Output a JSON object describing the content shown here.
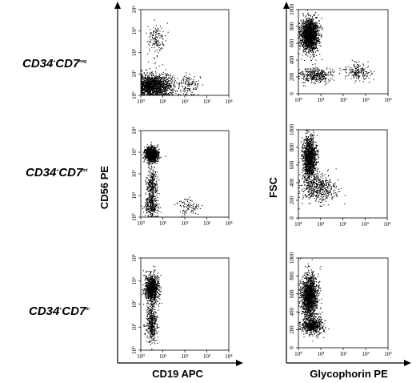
{
  "figure": {
    "row_labels": [
      {
        "base": "CD34",
        "sup1": "+",
        "mid": "CD7",
        "sup2": "neg"
      },
      {
        "base": "CD34",
        "sup1": "+",
        "mid": "CD7",
        "sup2": "int"
      },
      {
        "base": "CD34",
        "sup1": "+",
        "mid": "CD7",
        "sup2": "hi"
      }
    ],
    "left_column": {
      "ylabel": "CD56 PE",
      "xlabel": "CD19 APC"
    },
    "right_column": {
      "ylabel": "FSC",
      "xlabel": "Glycophorin PE"
    }
  },
  "chart_data": [
    {
      "type": "scatter",
      "panel": "CD34+CD7neg CD19 vs CD56",
      "x_scale": "log",
      "y_scale": "log",
      "xlim": [
        1,
        10000
      ],
      "ylim": [
        1,
        10000
      ],
      "x_ticks": [
        "10⁰",
        "10¹",
        "10²",
        "10³",
        "10⁴"
      ],
      "y_ticks": [
        "10⁰",
        "10¹",
        "10²",
        "10³",
        "10⁴"
      ],
      "clusters": [
        {
          "x_center": 2.5,
          "y_center": 3,
          "spread_x": 0.3,
          "spread_y": 0.25,
          "n": 1000
        },
        {
          "x_center": 10,
          "y_center": 3,
          "spread_x": 0.3,
          "spread_y": 0.25,
          "n": 450
        },
        {
          "x_center": 150,
          "y_center": 3,
          "spread_x": 0.25,
          "spread_y": 0.25,
          "n": 130
        },
        {
          "x_center": 5,
          "y_center": 400,
          "spread_x": 0.2,
          "spread_y": 0.4,
          "n": 140
        }
      ]
    },
    {
      "type": "scatter",
      "panel": "CD34+CD7neg Glycophorin vs FSC",
      "x_scale": "log",
      "y_scale": "linear",
      "xlim": [
        1,
        10000
      ],
      "ylim": [
        0,
        1000
      ],
      "x_ticks": [
        "10⁰",
        "10¹",
        "10²",
        "10³",
        "10⁴"
      ],
      "y_ticks": [
        "0",
        "200",
        "400",
        "600",
        "800",
        "1000"
      ],
      "clusters": [
        {
          "x_center": 3,
          "y_center": 700,
          "spread_x": 0.2,
          "spread_y": 95,
          "n": 1700
        },
        {
          "x_center": 6,
          "y_center": 230,
          "spread_x": 0.35,
          "spread_y": 45,
          "n": 350
        },
        {
          "x_center": 400,
          "y_center": 260,
          "spread_x": 0.3,
          "spread_y": 50,
          "n": 180
        }
      ]
    },
    {
      "type": "scatter",
      "panel": "CD34+CD7int CD19 vs CD56",
      "x_scale": "log",
      "y_scale": "log",
      "xlim": [
        1,
        10000
      ],
      "ylim": [
        1,
        10000
      ],
      "x_ticks": [
        "10⁰",
        "10¹",
        "10²",
        "10³",
        "10⁴"
      ],
      "y_ticks": [
        "10⁰",
        "10¹",
        "10²",
        "10³",
        "10⁴"
      ],
      "clusters": [
        {
          "x_center": 3,
          "y_center": 800,
          "spread_x": 0.15,
          "spread_y": 0.18,
          "n": 900
        },
        {
          "x_center": 3,
          "y_center": 30,
          "spread_x": 0.12,
          "spread_y": 0.45,
          "n": 350
        },
        {
          "x_center": 3,
          "y_center": 3,
          "spread_x": 0.15,
          "spread_y": 0.25,
          "n": 250
        },
        {
          "x_center": 150,
          "y_center": 3,
          "spread_x": 0.25,
          "spread_y": 0.2,
          "n": 90
        }
      ]
    },
    {
      "type": "scatter",
      "panel": "CD34+CD7int Glycophorin vs FSC",
      "x_scale": "log",
      "y_scale": "linear",
      "xlim": [
        1,
        10000
      ],
      "ylim": [
        0,
        1000
      ],
      "x_ticks": [
        "10⁰",
        "10¹",
        "10²",
        "10³",
        "10⁴"
      ],
      "y_ticks": [
        "0",
        "200",
        "400",
        "600",
        "800",
        "1000"
      ],
      "clusters": [
        {
          "x_center": 3,
          "y_center": 680,
          "spread_x": 0.15,
          "spread_y": 120,
          "n": 1300
        },
        {
          "x_center": 8,
          "y_center": 350,
          "spread_x": 0.4,
          "spread_y": 80,
          "n": 500
        }
      ]
    },
    {
      "type": "scatter",
      "panel": "CD34+CD7hi CD19 vs CD56",
      "x_scale": "log",
      "y_scale": "log",
      "xlim": [
        1,
        10000
      ],
      "ylim": [
        1,
        10000
      ],
      "x_ticks": [
        "10⁰",
        "10¹",
        "10²",
        "10³",
        "10⁴"
      ],
      "y_ticks": [
        "10⁰",
        "10¹",
        "10²",
        "10³",
        "10⁴"
      ],
      "clusters": [
        {
          "x_center": 3,
          "y_center": 500,
          "spread_x": 0.15,
          "spread_y": 0.3,
          "n": 1000
        },
        {
          "x_center": 3,
          "y_center": 15,
          "spread_x": 0.12,
          "spread_y": 0.4,
          "n": 450
        }
      ]
    },
    {
      "type": "scatter",
      "panel": "CD34+CD7hi Glycophorin vs FSC",
      "x_scale": "log",
      "y_scale": "linear",
      "xlim": [
        1,
        10000
      ],
      "ylim": [
        0,
        1000
      ],
      "x_ticks": [
        "10⁰",
        "10¹",
        "10²",
        "10³",
        "10⁴"
      ],
      "y_ticks": [
        "0",
        "200",
        "400",
        "600",
        "800",
        "1000"
      ],
      "clusters": [
        {
          "x_center": 3,
          "y_center": 580,
          "spread_x": 0.18,
          "spread_y": 120,
          "n": 1500
        },
        {
          "x_center": 4,
          "y_center": 250,
          "spread_x": 0.25,
          "spread_y": 45,
          "n": 600
        }
      ]
    }
  ]
}
